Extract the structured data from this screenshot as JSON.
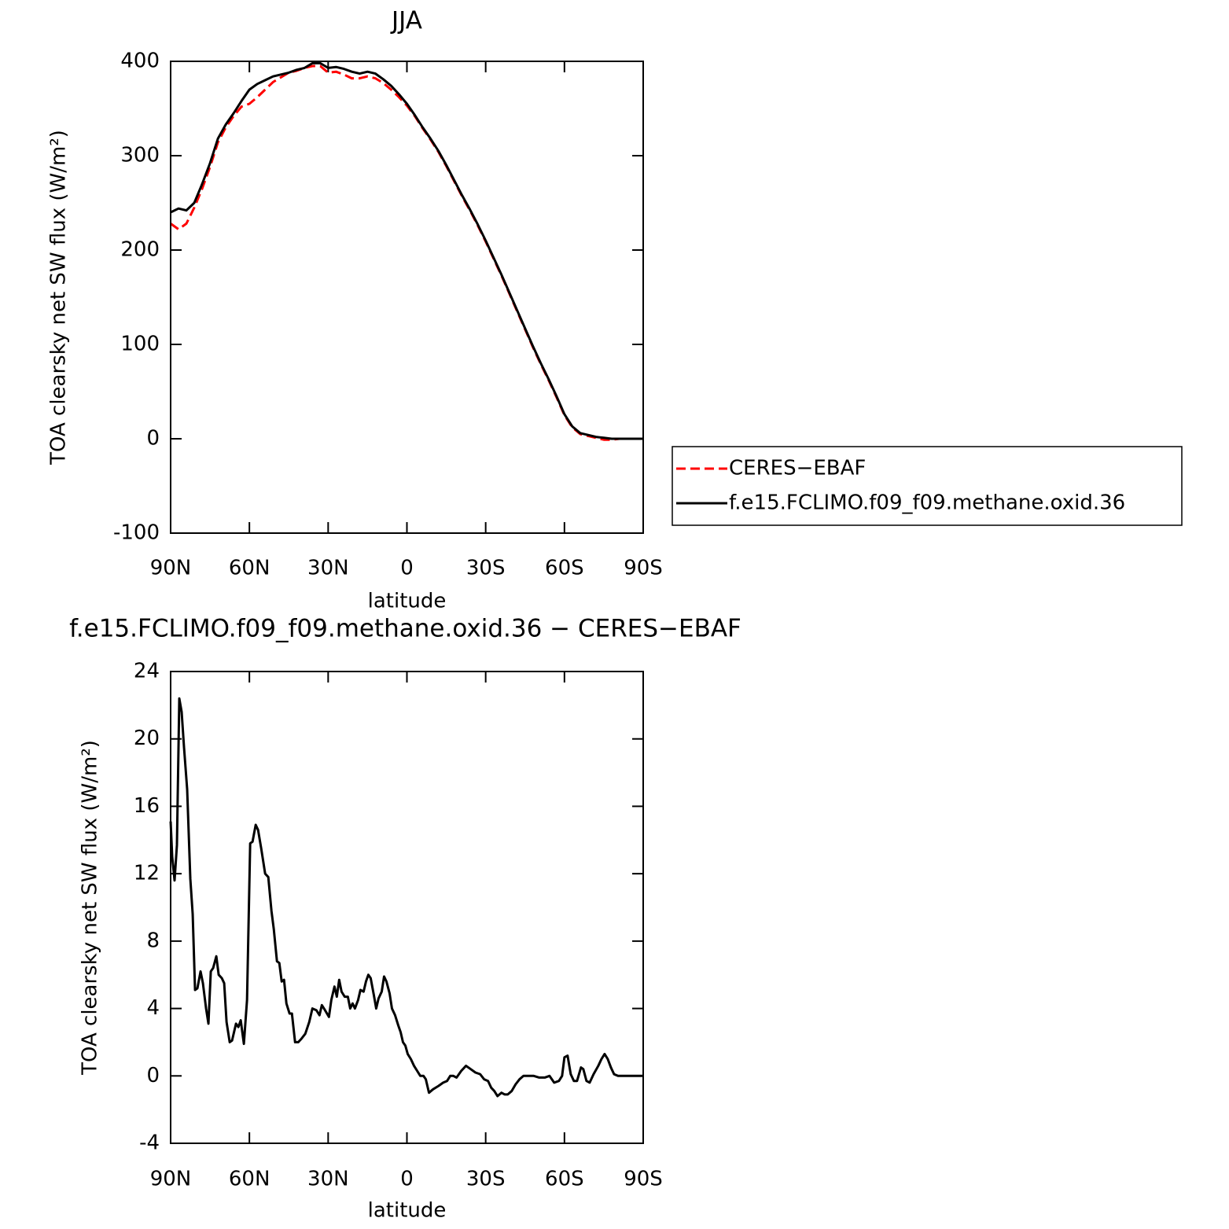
{
  "chart_data": [
    {
      "type": "line",
      "title": "JJA",
      "xlabel": "latitude",
      "ylabel": "TOA clearsky net SW flux (W/m²)",
      "x": [
        90,
        87,
        84,
        81,
        78,
        75,
        72,
        69,
        66,
        63,
        60,
        57,
        54,
        51,
        48,
        45,
        42,
        39,
        36,
        33,
        30,
        27,
        24,
        21,
        18,
        15,
        12,
        9,
        6,
        3,
        0,
        -3,
        -6,
        -9,
        -12,
        -15,
        -18,
        -21,
        -24,
        -27,
        -30,
        -33,
        -36,
        -39,
        -42,
        -45,
        -48,
        -51,
        -54,
        -57,
        -60,
        -63,
        -66,
        -69,
        -72,
        -75,
        -78,
        -81,
        -84,
        -87,
        -90
      ],
      "series": [
        {
          "name": "CERES−EBAF",
          "color": "#ff0000",
          "style": "dashed",
          "values": [
            228,
            222,
            228,
            245,
            265,
            288,
            314,
            330,
            342,
            352,
            355,
            362,
            370,
            378,
            383,
            388,
            390,
            393,
            395,
            395,
            388,
            389,
            386,
            382,
            382,
            384,
            382,
            377,
            370,
            362,
            353,
            342,
            329,
            317,
            304,
            289,
            273,
            257,
            242,
            226,
            209,
            191,
            173,
            154,
            135,
            116,
            97,
            79,
            62,
            44,
            25,
            12,
            5,
            3,
            1,
            -1,
            -1,
            0,
            0,
            0,
            0
          ]
        },
        {
          "name": "f.e15.FCLIMO.f09_f09.methane.oxid.36",
          "color": "#000000",
          "style": "solid",
          "values": [
            240,
            244,
            242,
            250,
            270,
            292,
            318,
            333,
            345,
            358,
            370,
            376,
            380,
            384,
            386,
            388,
            391,
            393,
            398,
            398,
            393,
            394,
            392,
            389,
            387,
            389,
            387,
            381,
            374,
            365,
            355,
            343,
            330,
            318,
            305,
            290,
            274,
            258,
            243,
            227,
            210,
            192,
            174,
            155,
            136,
            117,
            98,
            80,
            63,
            45,
            26,
            13,
            6,
            4,
            2,
            1,
            0,
            0,
            0,
            0,
            0
          ]
        }
      ],
      "xlim": [
        90,
        -90
      ],
      "xticks": [
        {
          "value": 90,
          "label": "90N"
        },
        {
          "value": 60,
          "label": "60N"
        },
        {
          "value": 30,
          "label": "30N"
        },
        0,
        {
          "value": -30,
          "label": "30S"
        },
        {
          "value": -60,
          "label": "60S"
        },
        {
          "value": -90,
          "label": "90S"
        }
      ],
      "ylim": [
        -100,
        400
      ],
      "yticks": [
        -100,
        0,
        100,
        200,
        300,
        400
      ]
    },
    {
      "type": "line",
      "title": "f.e15.FCLIMO.f09_f09.methane.oxid.36 − CERES−EBAF",
      "xlabel": "latitude",
      "ylabel": "TOA clearsky net SW flux (W/m²)",
      "x": [
        90,
        89.4,
        88.5,
        87.6,
        86.7,
        85.8,
        84.9,
        83.7,
        82.5,
        81.6,
        80.7,
        79.8,
        78.6,
        77.7,
        76.5,
        75.6,
        74.7,
        73.8,
        72.6,
        71.7,
        70.5,
        69.6,
        68.7,
        67.5,
        66.6,
        65.1,
        64.2,
        63.3,
        62.1,
        60.9,
        59.7,
        58.8,
        57.6,
        56.7,
        55.5,
        54,
        52.8,
        51.6,
        50.7,
        49.5,
        48.6,
        47.7,
        46.8,
        45.9,
        44.7,
        43.8,
        42.6,
        41.4,
        40.2,
        38.7,
        37.2,
        36,
        34.5,
        33.3,
        32.4,
        31.2,
        29.7,
        28.8,
        27.6,
        26.7,
        25.8,
        24.9,
        23.7,
        22.5,
        21.6,
        20.7,
        19.8,
        18.6,
        17.7,
        16.5,
        15.6,
        14.7,
        13.8,
        12.6,
        11.7,
        10.8,
        9.6,
        8.7,
        7.8,
        6.6,
        5.7,
        4.5,
        3.3,
        2.4,
        1.5,
        0.6,
        -0.3,
        -1.5,
        -2.7,
        -3.9,
        -5.1,
        -6.3,
        -7.2,
        -8.4,
        -9.9,
        -12,
        -13.8,
        -15.3,
        -16.5,
        -17.7,
        -18.9,
        -20.7,
        -22.5,
        -24.3,
        -26.1,
        -27.9,
        -29.4,
        -30.9,
        -32.1,
        -33.3,
        -34.5,
        -36,
        -37.2,
        -38.4,
        -39.9,
        -41.4,
        -42.9,
        -44.4,
        -45.9,
        -48.3,
        -50.4,
        -52.5,
        -54.3,
        -56.1,
        -57.9,
        -59.1,
        -60,
        -61.2,
        -62.4,
        -63.6,
        -64.8,
        -66.3,
        -67.2,
        -68.4,
        -69.6,
        -71.1,
        -72.9,
        -74.1,
        -75.3,
        -76.5,
        -77.7,
        -78.9,
        -80.4,
        -84.9,
        -90
      ],
      "values": [
        15.1,
        13,
        11.6,
        13.7,
        22.4,
        21.6,
        19.5,
        17,
        11.7,
        9.6,
        5.1,
        5.2,
        6.2,
        5.5,
        4,
        3.1,
        6.2,
        6.4,
        7.1,
        6,
        5.8,
        5.5,
        3.2,
        2,
        2.1,
        3.1,
        2.9,
        3.3,
        1.9,
        4.5,
        13.8,
        13.9,
        14.9,
        14.6,
        13.5,
        12,
        11.8,
        9.8,
        8.7,
        6.8,
        6.7,
        5.6,
        5.7,
        4.3,
        3.7,
        3.7,
        2,
        2,
        2.2,
        2.5,
        3.2,
        4,
        3.9,
        3.6,
        4.2,
        3.9,
        3.5,
        4.5,
        5.3,
        4.7,
        5.7,
        5,
        4.7,
        4.7,
        4,
        4.3,
        4,
        4.5,
        5.1,
        5,
        5.6,
        6,
        5.8,
        4.8,
        4,
        4.6,
        5,
        5.9,
        5.6,
        4.9,
        4,
        3.6,
        3,
        2.6,
        2,
        1.8,
        1.3,
        1,
        0.6,
        0.3,
        0,
        0,
        -0.2,
        -1,
        -0.8,
        -0.6,
        -0.4,
        -0.3,
        0,
        0,
        -0.1,
        0.3,
        0.6,
        0.4,
        0.2,
        0.1,
        -0.2,
        -0.3,
        -0.7,
        -0.9,
        -1.2,
        -1,
        -1.1,
        -1.1,
        -0.9,
        -0.5,
        -0.2,
        0,
        0,
        0,
        -0.1,
        -0.1,
        0,
        -0.4,
        -0.3,
        0,
        1.1,
        1.2,
        0.1,
        -0.3,
        -0.3,
        0.5,
        0.4,
        -0.3,
        -0.4,
        0.1,
        0.6,
        1,
        1.3,
        1,
        0.5,
        0.1,
        0,
        0,
        0
      ],
      "color": "#000000",
      "style": "solid",
      "xlim": [
        90,
        -90
      ],
      "xticks": [
        {
          "value": 90,
          "label": "90N"
        },
        {
          "value": 60,
          "label": "60N"
        },
        {
          "value": 30,
          "label": "30N"
        },
        0,
        {
          "value": -30,
          "label": "30S"
        },
        {
          "value": -60,
          "label": "60S"
        },
        {
          "value": -90,
          "label": "90S"
        }
      ],
      "ylim": [
        -4,
        24
      ],
      "yticks": [
        -4,
        0,
        4,
        8,
        12,
        16,
        20,
        24
      ]
    }
  ]
}
